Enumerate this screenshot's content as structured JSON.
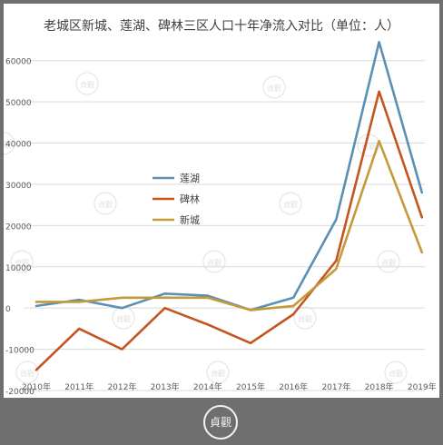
{
  "chart_data": {
    "type": "line",
    "title": "老城区新城、莲湖、碑林三区人口十年净流入对比（单位：人）",
    "categories": [
      "2010年",
      "2011年",
      "2012年",
      "2013年",
      "2014年",
      "2015年",
      "2016年",
      "2017年",
      "2018年",
      "2019年"
    ],
    "ylim": [
      -20000,
      65000
    ],
    "yticks": [
      -20000,
      -10000,
      0,
      10000,
      20000,
      30000,
      40000,
      50000,
      60000
    ],
    "ytick_labels": [
      "-20000",
      "-10000",
      "0",
      "10000",
      "20000",
      "30000",
      "40000",
      "50000",
      "60000"
    ],
    "grid": true,
    "legend_position": "center-left",
    "series": [
      {
        "name": "莲湖",
        "color": "#5b8fb3",
        "values": [
          500,
          2000,
          0,
          3500,
          3000,
          -500,
          2500,
          21500,
          64500,
          28000
        ]
      },
      {
        "name": "碑林",
        "color": "#c4551e",
        "values": [
          -15000,
          -5000,
          -10000,
          0,
          -4000,
          -8500,
          -1500,
          11500,
          52500,
          22000
        ]
      },
      {
        "name": "新城",
        "color": "#c49a3a",
        "values": [
          1500,
          1500,
          2500,
          2500,
          2500,
          -500,
          500,
          9500,
          40500,
          13500
        ]
      }
    ]
  },
  "watermark_text": "貞觀",
  "footer_logo_text": "貞觀"
}
